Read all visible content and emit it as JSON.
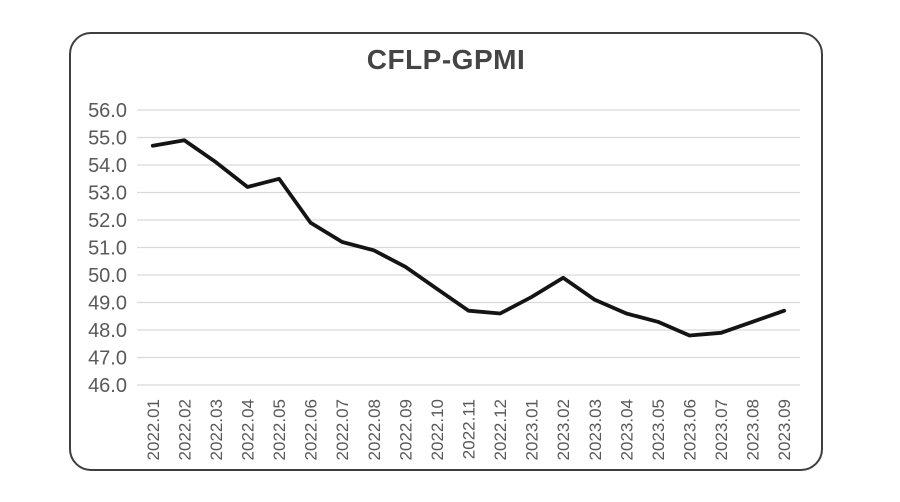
{
  "chart_data": {
    "type": "line",
    "title": "CFLP-GPMI",
    "categories": [
      "2022.01",
      "2022.02",
      "2022.03",
      "2022.04",
      "2022.05",
      "2022.06",
      "2022.07",
      "2022.08",
      "2022.09",
      "2022.10",
      "2022.11",
      "2022.12",
      "2023.01",
      "2023.02",
      "2023.03",
      "2023.04",
      "2023.05",
      "2023.06",
      "2023.07",
      "2023.08",
      "2023.09"
    ],
    "series": [
      {
        "name": "CFLP-GPMI",
        "values": [
          54.7,
          54.9,
          54.1,
          53.2,
          53.5,
          51.9,
          51.2,
          50.9,
          50.3,
          49.5,
          48.7,
          48.6,
          49.2,
          49.9,
          49.1,
          48.6,
          48.3,
          47.8,
          47.9,
          48.3,
          48.7
        ]
      }
    ],
    "xlabel": "",
    "ylabel": "",
    "ylim": [
      46.0,
      56.0
    ],
    "ytick_step": 1.0,
    "ytick_labels": [
      "46.0",
      "47.0",
      "48.0",
      "49.0",
      "50.0",
      "51.0",
      "52.0",
      "53.0",
      "54.0",
      "55.0",
      "56.0"
    ],
    "grid": true,
    "legend": false
  },
  "style": {
    "line_color": "#141414",
    "grid_color": "#d9d9d9",
    "tick_label_color": "#595959",
    "title_color": "#454545",
    "frame_border_color": "#3f3f3f",
    "background_color": "#ffffff"
  }
}
